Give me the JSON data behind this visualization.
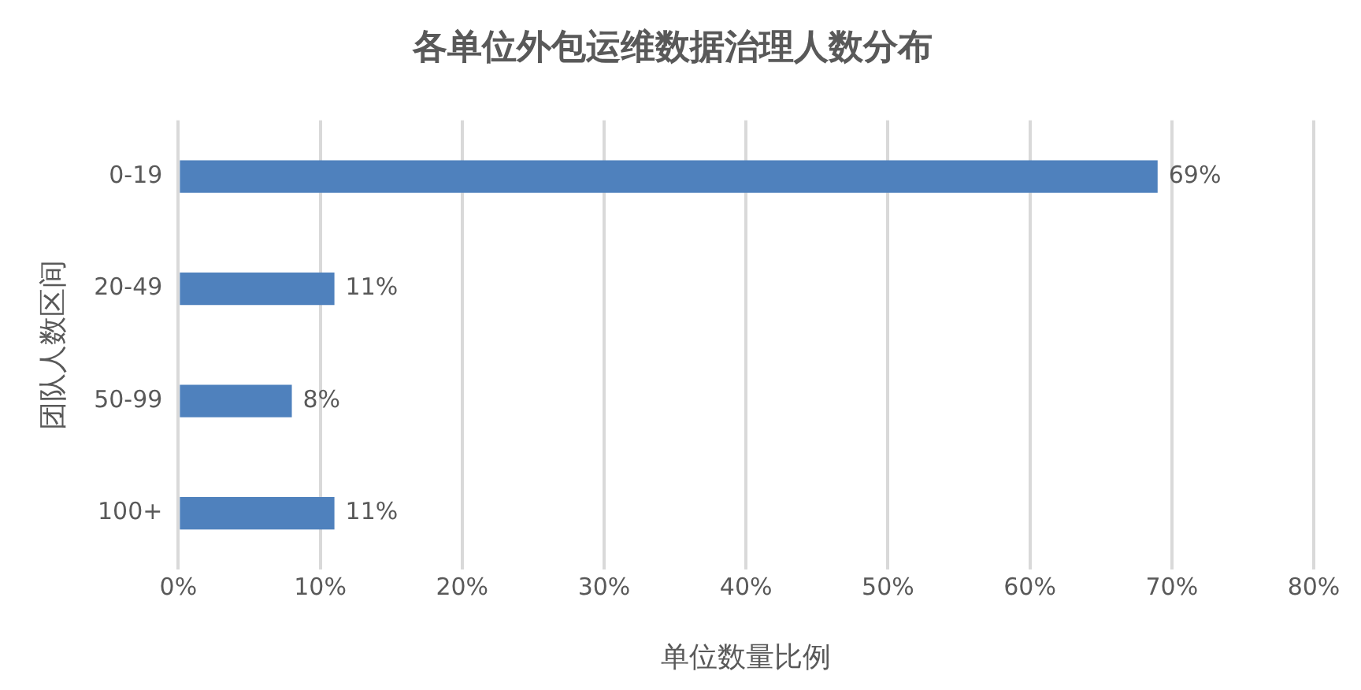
{
  "chart_data": {
    "type": "bar",
    "orientation": "horizontal",
    "title": "各单位外包运维数据治理人数分布",
    "xlabel": "单位数量比例",
    "ylabel": "团队人数区间",
    "categories": [
      "0-19",
      "20-49",
      "50-99",
      "100+"
    ],
    "values": [
      69,
      11,
      8,
      11
    ],
    "value_labels": [
      "69%",
      "11%",
      "8%",
      "11%"
    ],
    "color": "#4f81bd",
    "xlim": [
      0,
      80
    ],
    "xticks": [
      {
        "value": 0,
        "label": "0%"
      },
      {
        "value": 10,
        "label": "10%"
      },
      {
        "value": 20,
        "label": "20%"
      },
      {
        "value": 30,
        "label": "30%"
      },
      {
        "value": 40,
        "label": "40%"
      },
      {
        "value": 50,
        "label": "50%"
      },
      {
        "value": 60,
        "label": "60%"
      },
      {
        "value": 70,
        "label": "70%"
      },
      {
        "value": 80,
        "label": "80%"
      }
    ],
    "grid": "x"
  }
}
